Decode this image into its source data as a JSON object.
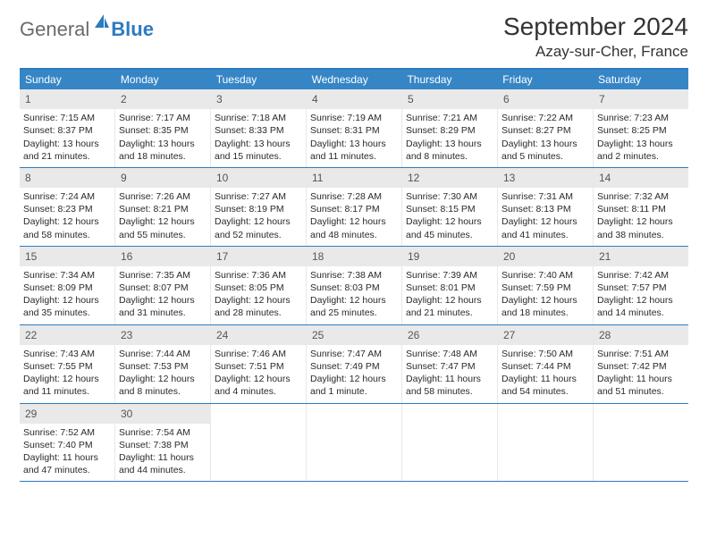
{
  "logo": {
    "text1": "General",
    "text2": "Blue"
  },
  "title": "September 2024",
  "location": "Azay-sur-Cher, France",
  "colors": {
    "header_bar": "#3686c6",
    "border": "#2d7bbf",
    "daynum_bg": "#e9e9e9",
    "text": "#2a2a2a"
  },
  "dow": [
    "Sunday",
    "Monday",
    "Tuesday",
    "Wednesday",
    "Thursday",
    "Friday",
    "Saturday"
  ],
  "weeks": [
    [
      {
        "n": "1",
        "sr": "7:15 AM",
        "ss": "8:37 PM",
        "dl": "13 hours and 21 minutes."
      },
      {
        "n": "2",
        "sr": "7:17 AM",
        "ss": "8:35 PM",
        "dl": "13 hours and 18 minutes."
      },
      {
        "n": "3",
        "sr": "7:18 AM",
        "ss": "8:33 PM",
        "dl": "13 hours and 15 minutes."
      },
      {
        "n": "4",
        "sr": "7:19 AM",
        "ss": "8:31 PM",
        "dl": "13 hours and 11 minutes."
      },
      {
        "n": "5",
        "sr": "7:21 AM",
        "ss": "8:29 PM",
        "dl": "13 hours and 8 minutes."
      },
      {
        "n": "6",
        "sr": "7:22 AM",
        "ss": "8:27 PM",
        "dl": "13 hours and 5 minutes."
      },
      {
        "n": "7",
        "sr": "7:23 AM",
        "ss": "8:25 PM",
        "dl": "13 hours and 2 minutes."
      }
    ],
    [
      {
        "n": "8",
        "sr": "7:24 AM",
        "ss": "8:23 PM",
        "dl": "12 hours and 58 minutes."
      },
      {
        "n": "9",
        "sr": "7:26 AM",
        "ss": "8:21 PM",
        "dl": "12 hours and 55 minutes."
      },
      {
        "n": "10",
        "sr": "7:27 AM",
        "ss": "8:19 PM",
        "dl": "12 hours and 52 minutes."
      },
      {
        "n": "11",
        "sr": "7:28 AM",
        "ss": "8:17 PM",
        "dl": "12 hours and 48 minutes."
      },
      {
        "n": "12",
        "sr": "7:30 AM",
        "ss": "8:15 PM",
        "dl": "12 hours and 45 minutes."
      },
      {
        "n": "13",
        "sr": "7:31 AM",
        "ss": "8:13 PM",
        "dl": "12 hours and 41 minutes."
      },
      {
        "n": "14",
        "sr": "7:32 AM",
        "ss": "8:11 PM",
        "dl": "12 hours and 38 minutes."
      }
    ],
    [
      {
        "n": "15",
        "sr": "7:34 AM",
        "ss": "8:09 PM",
        "dl": "12 hours and 35 minutes."
      },
      {
        "n": "16",
        "sr": "7:35 AM",
        "ss": "8:07 PM",
        "dl": "12 hours and 31 minutes."
      },
      {
        "n": "17",
        "sr": "7:36 AM",
        "ss": "8:05 PM",
        "dl": "12 hours and 28 minutes."
      },
      {
        "n": "18",
        "sr": "7:38 AM",
        "ss": "8:03 PM",
        "dl": "12 hours and 25 minutes."
      },
      {
        "n": "19",
        "sr": "7:39 AM",
        "ss": "8:01 PM",
        "dl": "12 hours and 21 minutes."
      },
      {
        "n": "20",
        "sr": "7:40 AM",
        "ss": "7:59 PM",
        "dl": "12 hours and 18 minutes."
      },
      {
        "n": "21",
        "sr": "7:42 AM",
        "ss": "7:57 PM",
        "dl": "12 hours and 14 minutes."
      }
    ],
    [
      {
        "n": "22",
        "sr": "7:43 AM",
        "ss": "7:55 PM",
        "dl": "12 hours and 11 minutes."
      },
      {
        "n": "23",
        "sr": "7:44 AM",
        "ss": "7:53 PM",
        "dl": "12 hours and 8 minutes."
      },
      {
        "n": "24",
        "sr": "7:46 AM",
        "ss": "7:51 PM",
        "dl": "12 hours and 4 minutes."
      },
      {
        "n": "25",
        "sr": "7:47 AM",
        "ss": "7:49 PM",
        "dl": "12 hours and 1 minute."
      },
      {
        "n": "26",
        "sr": "7:48 AM",
        "ss": "7:47 PM",
        "dl": "11 hours and 58 minutes."
      },
      {
        "n": "27",
        "sr": "7:50 AM",
        "ss": "7:44 PM",
        "dl": "11 hours and 54 minutes."
      },
      {
        "n": "28",
        "sr": "7:51 AM",
        "ss": "7:42 PM",
        "dl": "11 hours and 51 minutes."
      }
    ],
    [
      {
        "n": "29",
        "sr": "7:52 AM",
        "ss": "7:40 PM",
        "dl": "11 hours and 47 minutes."
      },
      {
        "n": "30",
        "sr": "7:54 AM",
        "ss": "7:38 PM",
        "dl": "11 hours and 44 minutes."
      },
      null,
      null,
      null,
      null,
      null
    ]
  ],
  "labels": {
    "sunrise": "Sunrise:",
    "sunset": "Sunset:",
    "daylight": "Daylight:"
  }
}
